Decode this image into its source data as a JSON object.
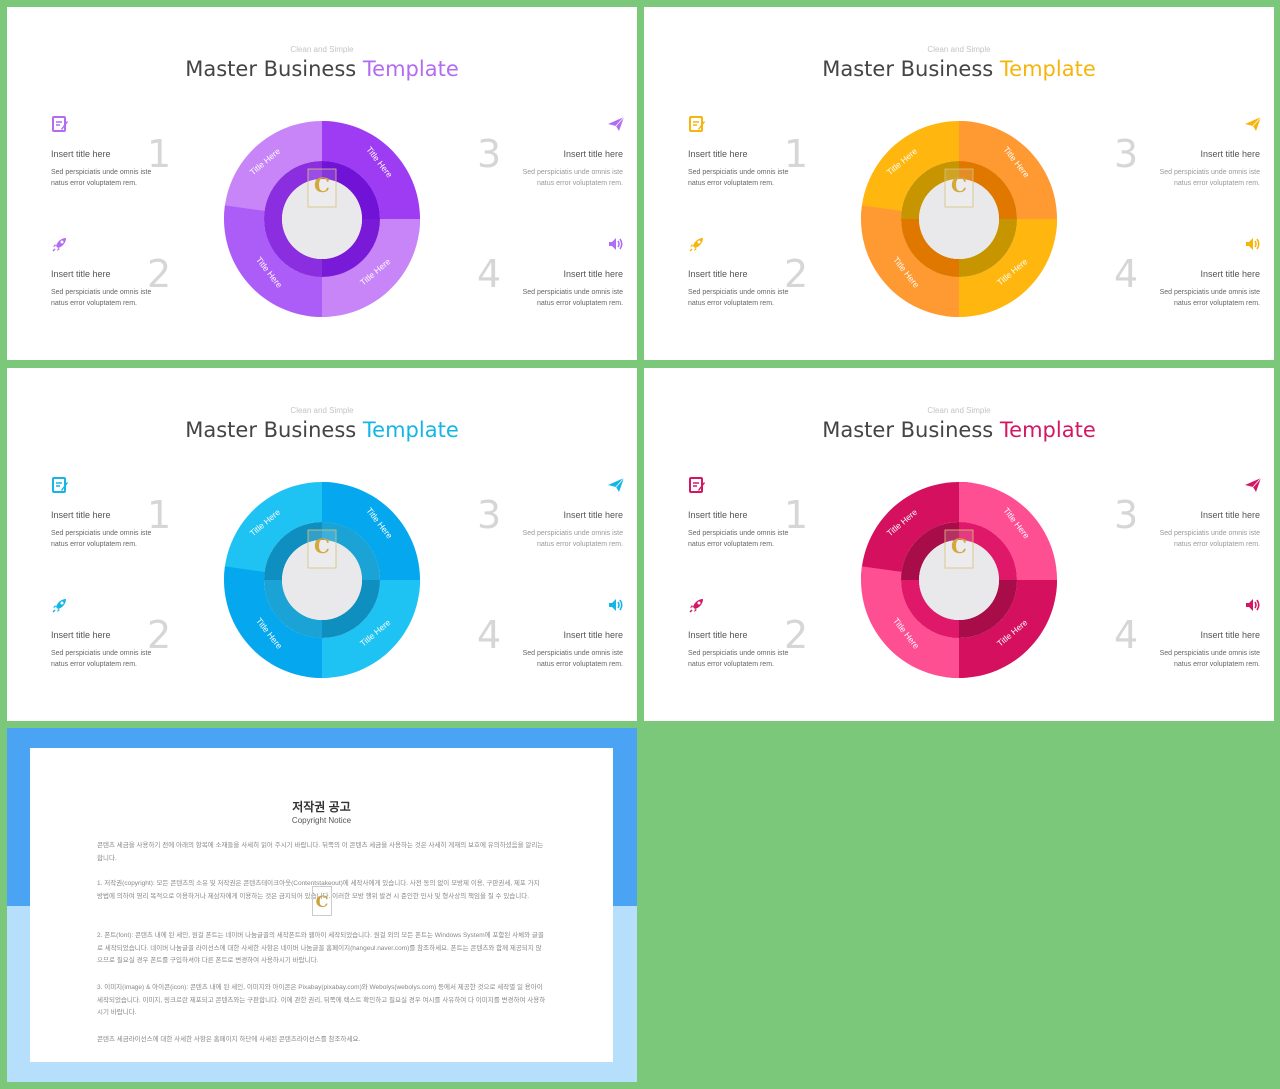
{
  "slides": [
    {
      "subtitle": "Clean and Simple",
      "title_main": "Master Business",
      "title_accent": "Template",
      "accent": "#b26cf3",
      "colors": {
        "outer": [
          "#c785f8",
          "#9d3cf2",
          "#c785f8",
          "#ad5df7"
        ],
        "inner": [
          "#8a2ee0",
          "#7113d6",
          "#7a1ad9",
          "#8a2ee0"
        ]
      },
      "ring_labels": [
        "Title Here",
        "Title Here",
        "Title Here",
        "Title Here"
      ],
      "items": [
        {
          "icon": "edit-icon",
          "title": "Insert title here",
          "desc": "Sed perspiciatis unde omnis iste natus error voluptatem rem.",
          "num": "1"
        },
        {
          "icon": "rocket-icon",
          "title": "Insert title here",
          "desc": "Sed perspiciatis unde omnis iste natus error voluptatem rem.",
          "num": "2"
        },
        {
          "icon": "paper-plane-icon",
          "title": "Insert title here",
          "desc": "Sed perspiciatis unde omnis iste natus error voluptatem rem.",
          "num": "3"
        },
        {
          "icon": "speaker-icon",
          "title": "Insert title here",
          "desc": "Sed perspiciatis unde omnis iste natus error voluptatem rem.",
          "num": "4"
        }
      ]
    },
    {
      "subtitle": "Clean and Simple",
      "title_main": "Master Business",
      "title_accent": "Template",
      "accent": "#f5b50d",
      "colors": {
        "outer": [
          "#ffb710",
          "#ff9a32",
          "#ffb710",
          "#ff9a32"
        ],
        "inner": [
          "#c79500",
          "#e07800",
          "#c79500",
          "#e07800"
        ]
      },
      "ring_labels": [
        "Title Here",
        "Title Here",
        "Title Here",
        "Title Here"
      ],
      "items": [
        {
          "icon": "edit-icon",
          "title": "Insert title here",
          "desc": "Sed perspiciatis unde omnis iste natus error voluptatem rem.",
          "num": "1"
        },
        {
          "icon": "rocket-icon",
          "title": "Insert title here",
          "desc": "Sed perspiciatis unde omnis iste natus error voluptatem rem.",
          "num": "2"
        },
        {
          "icon": "paper-plane-icon",
          "title": "Insert title here",
          "desc": "Sed perspiciatis unde omnis iste natus error voluptatem rem.",
          "num": "3"
        },
        {
          "icon": "speaker-icon",
          "title": "Insert title here",
          "desc": "Sed perspiciatis unde omnis iste natus error voluptatem rem.",
          "num": "4"
        }
      ]
    },
    {
      "subtitle": "Clean and Simple",
      "title_main": "Master Business",
      "title_accent": "Template",
      "accent": "#14b6e6",
      "colors": {
        "outer": [
          "#1fc3f3",
          "#05a8ee",
          "#1fc3f3",
          "#05a8ee"
        ],
        "inner": [
          "#0f8fc0",
          "#1aa3d4",
          "#0f8fc0",
          "#1aa3d4"
        ]
      },
      "ring_labels": [
        "Title Here",
        "Title Here",
        "Title Here",
        "Title Here"
      ],
      "items": [
        {
          "icon": "edit-icon",
          "title": "Insert title here",
          "desc": "Sed perspiciatis unde omnis iste natus error voluptatem rem.",
          "num": "1"
        },
        {
          "icon": "rocket-icon",
          "title": "Insert title here",
          "desc": "Sed perspiciatis unde omnis iste natus error voluptatem rem.",
          "num": "2"
        },
        {
          "icon": "paper-plane-icon",
          "title": "Insert title here",
          "desc": "Sed perspiciatis unde omnis iste natus error voluptatem rem.",
          "num": "3"
        },
        {
          "icon": "speaker-icon",
          "title": "Insert title here",
          "desc": "Sed perspiciatis unde omnis iste natus error voluptatem rem.",
          "num": "4"
        }
      ]
    },
    {
      "subtitle": "Clean and Simple",
      "title_main": "Master Business",
      "title_accent": "Template",
      "accent": "#d41765",
      "colors": {
        "outer": [
          "#d5105e",
          "#ff4f93",
          "#d5105e",
          "#ff4f93"
        ],
        "inner": [
          "#a80d4a",
          "#e0186a",
          "#a80d4a",
          "#e0186a"
        ]
      },
      "ring_labels": [
        "Title Here",
        "Title Here",
        "Title Here",
        "Title Here"
      ],
      "items": [
        {
          "icon": "edit-icon",
          "title": "Insert title here",
          "desc": "Sed perspiciatis unde omnis iste natus error voluptatem rem.",
          "num": "1"
        },
        {
          "icon": "rocket-icon",
          "title": "Insert title here",
          "desc": "Sed perspiciatis unde omnis iste natus error voluptatem rem.",
          "num": "2"
        },
        {
          "icon": "paper-plane-icon",
          "title": "Insert title here",
          "desc": "Sed perspiciatis unde omnis iste natus error voluptatem rem.",
          "num": "3"
        },
        {
          "icon": "speaker-icon",
          "title": "Insert title here",
          "desc": "Sed perspiciatis unde omnis iste natus error voluptatem rem.",
          "num": "4"
        }
      ]
    }
  ],
  "notice": {
    "title": "저작권 공고",
    "subtitle": "Copyright Notice",
    "paragraphs": [
      "콘텐츠 세금을 사용하기 전에 아래의 항목에 소재들을 사세히 읽어 주시기 바랍니다. 뒤쪽의 이 콘텐츠 세금을 사용하는 것은 사세히 게재의 보호에 유의하셨음을 알리는 합니다.",
      "1. 저작권(copyright): 모든 콘텐츠의 소유 및 저작권은 콘텐츠테이크아웃(Contentstakeout)에 세작사에게 있습니다. 사전 동의 없이 모방제 이용, 구판권세, 제포 가지 방법에 의하여 영리 목적으로 이용하거나 제삼자에게 이용하는 것은 금지되어 있습니다. 이러한 모방 행위 발견 시 준인한 민사 및 형사상의 책임을 질 수 있습니다.",
      "2. 폰트(font): 콘텐츠 내에 된 세인, 원걸 폰트는 네이버 나눔글꼴의 세작폰트와 웹아이 세작되었습니다. 원걸 외의 모든 폰트는 Windows System에 포함된 사체와 글꼴로 세작되었습니다. 네이버 나눔글꼴 라이선스에 대한 사세한 사항은 네이버 나눔글꼴 홈페이지(hangeul.naver.com)를 참조하세요. 폰트는 콘텐츠와 함께 제공되지 않으므로 필요실 경우 폰트를 구입하셔야 다른 폰트로 변경하여 사용하시기 바랍니다.",
      "3. 이미지(image) & 아이콘(icon): 콘텐츠 내에 된 세인, 이미지와 아이콘은 Pixabay(pixabay.com)와 Webolys(webolys.com) 등에서 제공한 것으로 세작별 일 용아이 세작되었습니다. 이미지, 링크르란 제포되고 콘텐츠와는 구판합니다. 이에 관한 권리, 뒤쪽에 렉스트 확인하고 필요실 경우 여시를 사유하여 다 이미지를 변경하여 사용하시기 바랍니다.",
      "콘텐츠 세금라이선스에 대한 사세한 사항은 홈페이지 하단에 사세된 콘텐츠라이선스를 참조하세요."
    ]
  }
}
